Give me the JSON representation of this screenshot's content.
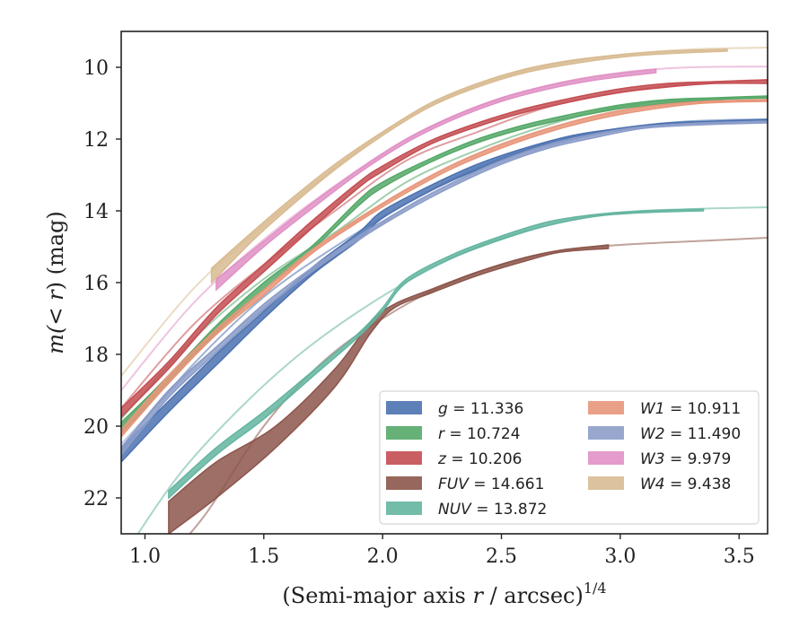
{
  "chart_data": {
    "type": "line",
    "title": "",
    "xlabel": "(Semi-major axis r / arcsec)",
    "xlabel_parts": {
      "prefix": "(Semi-major axis ",
      "var": "r",
      "suffix": " / arcsec)",
      "exponent": "1/4"
    },
    "ylabel": "m(< r) (mag)",
    "ylabel_parts": {
      "prefix": "m(",
      "op": "< ",
      "var": "r",
      "suffix": ") (mag)"
    },
    "xlim": [
      0.9,
      3.62
    ],
    "ylim": [
      23.0,
      9.0
    ],
    "y_inverted": true,
    "x_ticks": [
      "1.0",
      "1.5",
      "2.0",
      "2.5",
      "3.0",
      "3.5"
    ],
    "y_ticks": [
      "10",
      "12",
      "14",
      "16",
      "18",
      "20",
      "22"
    ],
    "grid": false,
    "legend_position": "lower-right",
    "series": [
      {
        "name": "g",
        "total_label": "g = 11.336",
        "color": "#4c72b0",
        "band_x": [
          0.9,
          1.1,
          1.3,
          1.5,
          1.7,
          1.9,
          2.0,
          2.2,
          2.4,
          2.6,
          2.8,
          3.0,
          3.2,
          3.4,
          3.62
        ],
        "band_upper": [
          20.6,
          19.3,
          18.0,
          16.8,
          15.6,
          14.6,
          14.0,
          13.3,
          12.7,
          12.25,
          11.9,
          11.7,
          11.55,
          11.5,
          11.45
        ],
        "band_lower": [
          21.0,
          19.6,
          18.3,
          17.0,
          15.8,
          14.8,
          14.2,
          13.45,
          12.85,
          12.35,
          12.0,
          11.75,
          11.6,
          11.55,
          11.5
        ],
        "model_x": [
          0.9,
          1.2,
          1.5,
          1.8,
          2.1,
          2.4,
          2.7,
          3.0,
          3.3,
          3.62
        ],
        "model_y": [
          20.6,
          18.3,
          16.4,
          15.0,
          13.8,
          12.8,
          12.1,
          11.7,
          11.5,
          11.45
        ]
      },
      {
        "name": "r",
        "total_label": "r = 10.724",
        "color": "#55a868",
        "band_x": [
          0.9,
          1.1,
          1.3,
          1.5,
          1.7,
          1.9,
          2.0,
          2.2,
          2.4,
          2.6,
          2.8,
          3.0,
          3.2,
          3.4,
          3.62
        ],
        "band_upper": [
          19.9,
          18.6,
          17.2,
          16.0,
          15.0,
          13.7,
          13.2,
          12.55,
          12.0,
          11.6,
          11.3,
          11.05,
          10.9,
          10.85,
          10.8
        ],
        "band_lower": [
          20.2,
          18.8,
          17.4,
          16.2,
          15.1,
          13.85,
          13.35,
          12.65,
          12.1,
          11.7,
          11.4,
          11.15,
          11.0,
          10.9,
          10.85
        ],
        "model_x": [
          0.9,
          1.2,
          1.5,
          1.8,
          2.1,
          2.4,
          2.7,
          3.0,
          3.3,
          3.62
        ],
        "model_y": [
          19.8,
          17.6,
          15.9,
          14.6,
          13.2,
          12.3,
          11.6,
          11.1,
          10.9,
          10.85
        ]
      },
      {
        "name": "z",
        "total_label": "z = 10.206",
        "color": "#c44e52",
        "band_x": [
          0.9,
          1.1,
          1.3,
          1.5,
          1.7,
          1.9,
          2.0,
          2.2,
          2.4,
          2.6,
          2.8,
          3.0,
          3.2,
          3.4,
          3.62
        ],
        "band_upper": [
          19.5,
          18.2,
          16.7,
          15.5,
          14.3,
          13.2,
          12.75,
          12.05,
          11.55,
          11.15,
          10.85,
          10.6,
          10.45,
          10.4,
          10.35
        ],
        "band_lower": [
          19.75,
          18.4,
          16.9,
          15.7,
          14.5,
          13.35,
          12.9,
          12.15,
          11.65,
          11.25,
          10.95,
          10.7,
          10.55,
          10.45,
          10.45
        ],
        "model_x": [
          0.9,
          1.2,
          1.5,
          1.8,
          2.1,
          2.4,
          2.7,
          3.0,
          3.3,
          3.62
        ],
        "model_y": [
          19.5,
          17.2,
          15.5,
          14.0,
          12.6,
          11.8,
          11.1,
          10.7,
          10.45,
          10.35
        ]
      },
      {
        "name": "FUV",
        "total_label": "FUV = 14.661",
        "color": "#8c564b",
        "band_x": [
          1.1,
          1.3,
          1.55,
          1.8,
          1.95,
          2.05,
          2.2,
          2.4,
          2.6,
          2.75,
          2.95
        ],
        "band_upper": [
          22.1,
          21.0,
          20.0,
          18.4,
          17.1,
          16.6,
          16.2,
          15.7,
          15.3,
          15.1,
          14.95
        ],
        "band_lower": [
          23.0,
          22.0,
          20.6,
          18.9,
          17.4,
          16.7,
          16.3,
          15.8,
          15.4,
          15.15,
          15.05
        ],
        "model_x": [
          1.05,
          1.25,
          1.5,
          1.75,
          2.0,
          2.25,
          2.5,
          2.75,
          3.0,
          3.3,
          3.62
        ],
        "model_y": [
          24.0,
          22.5,
          20.0,
          18.2,
          17.0,
          16.1,
          15.5,
          15.1,
          14.95,
          14.85,
          14.75
        ]
      },
      {
        "name": "NUV",
        "total_label": "NUV = 13.872",
        "color": "#64b5a0",
        "band_x": [
          1.1,
          1.3,
          1.5,
          1.7,
          1.9,
          2.0,
          2.1,
          2.3,
          2.5,
          2.7,
          2.9,
          3.1,
          3.35
        ],
        "band_upper": [
          21.8,
          20.6,
          19.6,
          18.5,
          17.4,
          16.7,
          15.9,
          15.2,
          14.7,
          14.3,
          14.1,
          14.0,
          13.95
        ],
        "band_lower": [
          22.0,
          20.8,
          19.8,
          18.65,
          17.5,
          16.8,
          16.0,
          15.3,
          14.8,
          14.4,
          14.15,
          14.05,
          14.0
        ],
        "model_x": [
          0.95,
          1.15,
          1.4,
          1.65,
          1.9,
          2.15,
          2.4,
          2.7,
          3.0,
          3.3,
          3.62
        ],
        "model_y": [
          23.2,
          21.3,
          19.5,
          18.0,
          16.8,
          15.8,
          15.0,
          14.4,
          14.05,
          13.95,
          13.9
        ]
      },
      {
        "name": "W1",
        "total_label": "W1 = 10.911",
        "color": "#e8967a",
        "band_x": [
          0.9,
          1.1,
          1.3,
          1.5,
          1.7,
          1.9,
          2.1,
          2.3,
          2.5,
          2.7,
          2.9,
          3.1,
          3.35,
          3.62
        ],
        "band_upper": [
          20.1,
          18.6,
          17.3,
          16.2,
          15.1,
          14.2,
          13.4,
          12.7,
          12.15,
          11.7,
          11.35,
          11.1,
          10.95,
          10.9
        ],
        "band_lower": [
          20.3,
          18.8,
          17.45,
          16.35,
          15.2,
          14.3,
          13.5,
          12.8,
          12.25,
          11.8,
          11.45,
          11.2,
          11.0,
          10.95
        ],
        "model_x": [
          0.9,
          1.2,
          1.5,
          1.8,
          2.1,
          2.4,
          2.7,
          3.0,
          3.3,
          3.62
        ],
        "model_y": [
          20.0,
          17.9,
          16.2,
          14.7,
          13.4,
          12.4,
          11.7,
          11.2,
          11.0,
          10.9
        ]
      },
      {
        "name": "W2",
        "total_label": "W2 = 11.490",
        "color": "#8c9dc9",
        "band_x": [
          0.9,
          1.1,
          1.3,
          1.5,
          1.7,
          1.9,
          2.1,
          2.3,
          2.5,
          2.7,
          2.9,
          3.1,
          3.35,
          3.62
        ],
        "band_upper": [
          20.6,
          19.0,
          17.8,
          16.6,
          15.6,
          14.7,
          13.9,
          13.2,
          12.6,
          12.15,
          11.85,
          11.65,
          11.55,
          11.5
        ],
        "band_lower": [
          20.8,
          19.2,
          17.95,
          16.75,
          15.7,
          14.8,
          14.0,
          13.3,
          12.7,
          12.25,
          11.95,
          11.7,
          11.6,
          11.55
        ],
        "model_x": [
          0.9,
          1.2,
          1.5,
          1.8,
          2.1,
          2.4,
          2.7,
          3.0,
          3.3,
          3.62
        ],
        "model_y": [
          20.5,
          18.4,
          16.7,
          15.3,
          13.9,
          12.9,
          12.2,
          11.75,
          11.55,
          11.5
        ]
      },
      {
        "name": "W3",
        "total_label": "W3 = 9.979",
        "color": "#e091c5",
        "band_x": [
          1.3,
          1.5,
          1.7,
          1.9,
          2.1,
          2.3,
          2.5,
          2.7,
          2.9,
          3.15
        ],
        "band_upper": [
          15.9,
          14.85,
          13.8,
          12.85,
          12.0,
          11.35,
          10.85,
          10.5,
          10.25,
          10.05
        ],
        "band_lower": [
          16.2,
          15.0,
          13.95,
          12.95,
          12.1,
          11.45,
          10.95,
          10.6,
          10.35,
          10.15
        ],
        "model_x": [
          0.9,
          1.2,
          1.5,
          1.8,
          2.1,
          2.4,
          2.7,
          3.0,
          3.3,
          3.62
        ],
        "model_y": [
          19.0,
          16.6,
          14.8,
          13.3,
          12.0,
          11.1,
          10.5,
          10.15,
          10.0,
          9.98
        ]
      },
      {
        "name": "W4",
        "total_label": "W4 = 9.438",
        "color": "#d8bb92",
        "band_x": [
          1.28,
          1.45,
          1.6,
          1.8,
          2.0,
          2.2,
          2.4,
          2.6,
          2.8,
          3.0,
          3.2,
          3.45
        ],
        "band_upper": [
          15.6,
          14.6,
          13.75,
          12.7,
          11.8,
          11.0,
          10.45,
          10.05,
          9.8,
          9.65,
          9.55,
          9.5
        ],
        "band_lower": [
          16.0,
          14.85,
          13.95,
          12.85,
          11.9,
          11.1,
          10.55,
          10.15,
          9.9,
          9.72,
          9.62,
          9.55
        ],
        "model_x": [
          0.9,
          1.2,
          1.5,
          1.8,
          2.1,
          2.4,
          2.7,
          3.0,
          3.3,
          3.62
        ],
        "model_y": [
          18.6,
          16.2,
          14.4,
          12.8,
          11.4,
          10.5,
          9.95,
          9.65,
          9.5,
          9.45
        ]
      }
    ]
  }
}
